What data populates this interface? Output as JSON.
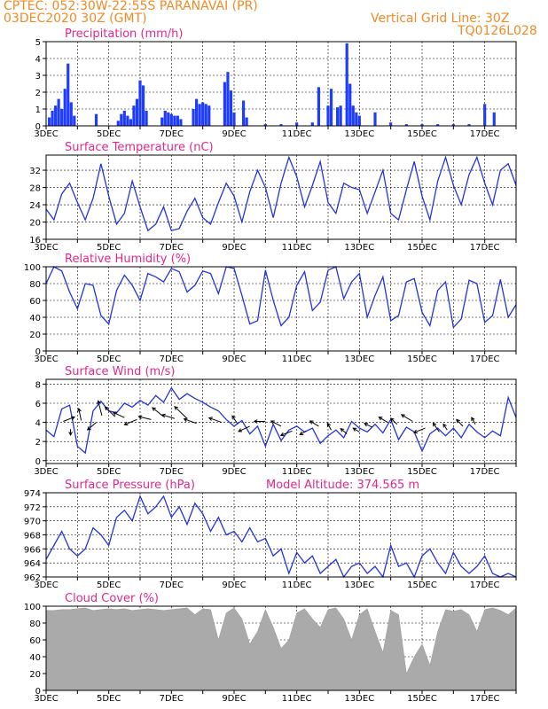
{
  "header": {
    "line1": "CPTEC:   052:30W-22:55S   PARANAVAI (PR)",
    "line2": "03DEC2020 30Z (GMT)",
    "grid_label": "Vertical Grid Line: 30Z",
    "code": "TQ0126L028"
  },
  "colors": {
    "header": "#f08a24",
    "title": "#e0288a",
    "series": "#2233dd",
    "bar": "#1e3cff",
    "cloud": "#aaaaaa",
    "axis": "#000000"
  },
  "chart_data": [
    {
      "type": "bar",
      "title": "Precipitation (mm/h)",
      "xlabels": [
        "3DEC",
        "5DEC",
        "7DEC",
        "9DEC",
        "11DEC",
        "13DEC",
        "15DEC",
        "17DEC"
      ],
      "yticks": [
        0,
        1,
        2,
        3,
        4,
        5
      ],
      "ylim": [
        0,
        5
      ],
      "days_span": [
        3,
        18
      ],
      "bars": [
        [
          3.1,
          0.5
        ],
        [
          3.2,
          0.9
        ],
        [
          3.3,
          1.2
        ],
        [
          3.4,
          1.6
        ],
        [
          3.5,
          1.0
        ],
        [
          3.6,
          2.2
        ],
        [
          3.7,
          3.7
        ],
        [
          3.8,
          1.4
        ],
        [
          3.9,
          0.6
        ],
        [
          4.6,
          0.7
        ],
        [
          5.3,
          0.3
        ],
        [
          5.4,
          0.7
        ],
        [
          5.5,
          0.9
        ],
        [
          5.6,
          0.6
        ],
        [
          5.7,
          0.4
        ],
        [
          5.8,
          1.2
        ],
        [
          5.9,
          1.6
        ],
        [
          6.0,
          2.7
        ],
        [
          6.1,
          2.4
        ],
        [
          6.2,
          0.9
        ],
        [
          6.7,
          0.5
        ],
        [
          6.8,
          0.9
        ],
        [
          6.9,
          0.8
        ],
        [
          7.0,
          0.7
        ],
        [
          7.1,
          0.6
        ],
        [
          7.2,
          0.6
        ],
        [
          7.3,
          0.4
        ],
        [
          7.7,
          1.0
        ],
        [
          7.8,
          1.6
        ],
        [
          7.9,
          1.3
        ],
        [
          8.0,
          1.4
        ],
        [
          8.1,
          1.3
        ],
        [
          8.2,
          1.2
        ],
        [
          8.7,
          2.6
        ],
        [
          8.8,
          3.2
        ],
        [
          8.9,
          2.1
        ],
        [
          9.0,
          0.8
        ],
        [
          9.3,
          1.5
        ],
        [
          9.4,
          0.5
        ],
        [
          10.0,
          0.1
        ],
        [
          10.5,
          0.1
        ],
        [
          11.0,
          0.2
        ],
        [
          11.5,
          0.2
        ],
        [
          11.7,
          2.3
        ],
        [
          12.0,
          1.2
        ],
        [
          12.1,
          2.2
        ],
        [
          12.3,
          1.1
        ],
        [
          12.4,
          1.2
        ],
        [
          12.6,
          4.9
        ],
        [
          12.7,
          2.5
        ],
        [
          12.8,
          1.2
        ],
        [
          12.9,
          0.8
        ],
        [
          13.0,
          0.6
        ],
        [
          13.5,
          0.8
        ],
        [
          14.0,
          0.2
        ],
        [
          14.5,
          0.1
        ],
        [
          15.0,
          0.1
        ],
        [
          15.5,
          0.1
        ],
        [
          16.0,
          0.1
        ],
        [
          16.5,
          0.1
        ],
        [
          17.0,
          1.3
        ],
        [
          17.3,
          0.8
        ]
      ]
    },
    {
      "type": "line",
      "title": "Surface Temperature (nC)",
      "xlabels": [
        "3DEC",
        "5DEC",
        "7DEC",
        "9DEC",
        "11DEC",
        "13DEC",
        "15DEC",
        "17DEC"
      ],
      "yticks": [
        16,
        20,
        24,
        28,
        32
      ],
      "ylim": [
        16,
        35.5
      ],
      "days_span": [
        3,
        18
      ],
      "x": [
        3.0,
        3.25,
        3.5,
        3.75,
        4.0,
        4.25,
        4.5,
        4.75,
        5.0,
        5.25,
        5.5,
        5.75,
        6.0,
        6.25,
        6.5,
        6.75,
        7.0,
        7.25,
        7.5,
        7.75,
        8.0,
        8.25,
        8.5,
        8.75,
        9.0,
        9.25,
        9.5,
        9.75,
        10.0,
        10.25,
        10.5,
        10.75,
        11.0,
        11.25,
        11.5,
        11.75,
        12.0,
        12.25,
        12.5,
        12.75,
        13.0,
        13.25,
        13.5,
        13.75,
        14.0,
        14.25,
        14.5,
        14.75,
        15.0,
        15.25,
        15.5,
        15.75,
        16.0,
        16.25,
        16.5,
        16.75,
        17.0,
        17.25,
        17.5,
        17.75,
        18.0
      ],
      "y": [
        23,
        20.5,
        26.5,
        29,
        24.5,
        20.5,
        25.5,
        33.5,
        26,
        19.5,
        22,
        29.5,
        23.5,
        18,
        19.5,
        23.5,
        18,
        18.5,
        22.5,
        25.5,
        21,
        19.5,
        24.5,
        29,
        26,
        20,
        27,
        32,
        28,
        21,
        29,
        35,
        30.5,
        23.5,
        28.5,
        34,
        24.5,
        22,
        29,
        28,
        27.5,
        22,
        27,
        32,
        22,
        20.5,
        27.5,
        34,
        26,
        20.5,
        29.5,
        35,
        28.5,
        24,
        31,
        35,
        29,
        24,
        32,
        33.5,
        28.5
      ]
    },
    {
      "type": "line",
      "title": "Relative Humidity (%)",
      "xlabels": [
        "3DEC",
        "5DEC",
        "7DEC",
        "9DEC",
        "11DEC",
        "13DEC",
        "15DEC",
        "17DEC"
      ],
      "yticks": [
        0,
        20,
        40,
        60,
        80,
        100
      ],
      "ylim": [
        0,
        100
      ],
      "days_span": [
        3,
        18
      ],
      "x": [
        3.0,
        3.25,
        3.5,
        3.75,
        4.0,
        4.25,
        4.5,
        4.75,
        5.0,
        5.25,
        5.5,
        5.75,
        6.0,
        6.25,
        6.5,
        6.75,
        7.0,
        7.25,
        7.5,
        7.75,
        8.0,
        8.25,
        8.5,
        8.75,
        9.0,
        9.25,
        9.5,
        9.75,
        10.0,
        10.25,
        10.5,
        10.75,
        11.0,
        11.25,
        11.5,
        11.75,
        12.0,
        12.25,
        12.5,
        12.75,
        13.0,
        13.25,
        13.5,
        13.75,
        14.0,
        14.25,
        14.5,
        14.75,
        15.0,
        15.25,
        15.5,
        15.75,
        16.0,
        16.25,
        16.5,
        16.75,
        17.0,
        17.25,
        17.5,
        17.75,
        18.0
      ],
      "y": [
        80,
        100,
        95,
        70,
        50,
        80,
        78,
        42,
        32,
        72,
        90,
        78,
        60,
        92,
        88,
        82,
        98,
        94,
        70,
        78,
        95,
        92,
        68,
        100,
        98,
        66,
        32,
        36,
        96,
        60,
        30,
        40,
        78,
        94,
        48,
        58,
        96,
        100,
        62,
        82,
        92,
        40,
        66,
        88,
        36,
        42,
        82,
        86,
        46,
        30,
        72,
        82,
        28,
        38,
        84,
        80,
        34,
        42,
        85,
        40,
        55
      ]
    },
    {
      "type": "line",
      "title": "Surface Wind (m/s)",
      "xlabels": [
        "3DEC",
        "5DEC",
        "7DEC",
        "9DEC",
        "11DEC",
        "13DEC",
        "15DEC",
        "17DEC"
      ],
      "yticks": [
        0,
        2,
        4,
        6,
        8
      ],
      "ylim": [
        -0.3,
        8.5
      ],
      "days_span": [
        3,
        18
      ],
      "x": [
        3.0,
        3.25,
        3.5,
        3.75,
        4.0,
        4.25,
        4.5,
        4.75,
        5.0,
        5.25,
        5.5,
        5.75,
        6.0,
        6.25,
        6.5,
        6.75,
        7.0,
        7.25,
        7.5,
        7.75,
        8.0,
        8.25,
        8.5,
        8.75,
        9.0,
        9.25,
        9.5,
        9.75,
        10.0,
        10.25,
        10.5,
        10.75,
        11.0,
        11.25,
        11.5,
        11.75,
        12.0,
        12.25,
        12.5,
        12.75,
        13.0,
        13.25,
        13.5,
        13.75,
        14.0,
        14.25,
        14.5,
        14.75,
        15.0,
        15.25,
        15.5,
        15.75,
        16.0,
        16.25,
        16.5,
        16.75,
        17.0,
        17.25,
        17.5,
        17.75,
        18.0
      ],
      "y": [
        3.2,
        2.5,
        5.4,
        5.8,
        1.5,
        0.8,
        5.2,
        6.2,
        5.2,
        5.0,
        6.0,
        5.6,
        6.3,
        5.8,
        6.8,
        6.1,
        7.6,
        6.4,
        7.0,
        6.5,
        6.1,
        5.6,
        5.2,
        4.3,
        3.6,
        4.2,
        2.8,
        3.6,
        1.5,
        3.8,
        2.1,
        3.2,
        3.6,
        3.0,
        3.4,
        1.8,
        2.6,
        3.2,
        2.4,
        4.1,
        3.4,
        3.0,
        3.8,
        2.9,
        4.3,
        2.2,
        3.5,
        3.0,
        1.0,
        2.8,
        3.4,
        2.6,
        3.4,
        2.4,
        3.8,
        3.0,
        2.4,
        3.1,
        2.6,
        6.6,
        4.5
      ],
      "arrows": [
        [
          3.55,
          4.1,
          0.9,
          0.6
        ],
        [
          3.78,
          3.3,
          0.0,
          -0.8
        ],
        [
          4.12,
          4.2,
          -0.2,
          1.6
        ],
        [
          4.6,
          4.0,
          -0.7,
          -1.0
        ],
        [
          4.78,
          4.7,
          -0.3,
          2.0
        ],
        [
          5.2,
          4.6,
          -0.8,
          1.3
        ],
        [
          5.5,
          4.5,
          -0.9,
          0.7
        ],
        [
          5.9,
          4.3,
          -1.0,
          -0.7
        ],
        [
          6.35,
          4.3,
          -1.0,
          0.4
        ],
        [
          6.75,
          4.6,
          -0.9,
          1.2
        ],
        [
          7.1,
          4.4,
          -1.0,
          0.5
        ],
        [
          7.5,
          4.4,
          -1.0,
          1.6
        ],
        [
          7.8,
          3.9,
          -1.0,
          0.6
        ],
        [
          8.6,
          4.0,
          -1.0,
          0.6
        ],
        [
          9.1,
          3.9,
          -0.4,
          1.0
        ],
        [
          9.5,
          3.6,
          -0.9,
          -0.7
        ],
        [
          10.0,
          4.1,
          -0.9,
          0.0
        ],
        [
          10.5,
          3.6,
          -0.8,
          0.7
        ],
        [
          10.85,
          3.1,
          -0.9,
          -0.6
        ],
        [
          11.3,
          3.1,
          -0.5,
          -0.5
        ],
        [
          11.7,
          3.6,
          -0.7,
          0.7
        ],
        [
          12.1,
          3.2,
          -0.3,
          0.9
        ],
        [
          12.6,
          2.8,
          -0.5,
          0.7
        ],
        [
          13.0,
          3.0,
          -0.5,
          0.5
        ],
        [
          13.4,
          3.5,
          -0.6,
          0.5
        ],
        [
          13.9,
          4.0,
          -0.7,
          0.7
        ],
        [
          14.2,
          3.8,
          -0.5,
          0.8
        ],
        [
          14.7,
          4.1,
          -0.9,
          0.9
        ],
        [
          15.1,
          3.4,
          -0.9,
          -0.6
        ],
        [
          15.55,
          3.0,
          -0.5,
          1.2
        ],
        [
          15.8,
          3.2,
          -0.3,
          0.8
        ],
        [
          16.3,
          3.6,
          -0.5,
          0.9
        ],
        [
          16.7,
          3.8,
          -0.3,
          0.9
        ]
      ]
    },
    {
      "type": "line",
      "title": "Surface Pressure (hPa)",
      "annotation": "Model Altitude: 374.565 m",
      "xlabels": [
        "3DEC",
        "5DEC",
        "7DEC",
        "9DEC",
        "11DEC",
        "13DEC",
        "15DEC",
        "17DEC"
      ],
      "yticks": [
        962,
        964,
        966,
        968,
        970,
        972,
        974
      ],
      "ylim": [
        962,
        974
      ],
      "days_span": [
        3,
        18
      ],
      "x": [
        3.0,
        3.25,
        3.5,
        3.75,
        4.0,
        4.25,
        4.5,
        4.75,
        5.0,
        5.25,
        5.5,
        5.75,
        6.0,
        6.25,
        6.5,
        6.75,
        7.0,
        7.25,
        7.5,
        7.75,
        8.0,
        8.25,
        8.5,
        8.75,
        9.0,
        9.25,
        9.5,
        9.75,
        10.0,
        10.25,
        10.5,
        10.75,
        11.0,
        11.25,
        11.5,
        11.75,
        12.0,
        12.25,
        12.5,
        12.75,
        13.0,
        13.25,
        13.5,
        13.75,
        14.0,
        14.25,
        14.5,
        14.75,
        15.0,
        15.25,
        15.5,
        15.75,
        16.0,
        16.25,
        16.5,
        16.75,
        17.0,
        17.25,
        17.5,
        17.75,
        18.0
      ],
      "y": [
        964.5,
        966.5,
        968.5,
        966,
        965,
        966,
        969,
        968,
        966.5,
        970.5,
        971.5,
        970,
        973.5,
        971,
        972,
        973.5,
        970.5,
        972,
        969.5,
        972.5,
        971,
        968.5,
        970.5,
        968,
        968.5,
        967,
        969,
        967,
        967.5,
        965,
        966,
        962.5,
        965.5,
        964,
        965,
        962.5,
        963.5,
        964.5,
        962,
        963.5,
        964,
        962.5,
        963.5,
        962,
        966.5,
        963.5,
        964,
        962,
        965,
        966,
        964,
        962.5,
        965.5,
        963.5,
        962.5,
        963.5,
        965,
        962.5,
        962,
        962.5,
        962
      ]
    },
    {
      "type": "area",
      "title": "Cloud Cover (%)",
      "xlabels": [
        "3DEC",
        "5DEC",
        "7DEC",
        "9DEC",
        "11DEC",
        "13DEC",
        "15DEC",
        "17DEC"
      ],
      "yticks": [
        0,
        20,
        40,
        60,
        80,
        100
      ],
      "ylim": [
        0,
        100
      ],
      "days_span": [
        3,
        18
      ],
      "x": [
        3.0,
        3.25,
        3.5,
        3.75,
        4.0,
        4.25,
        4.5,
        4.75,
        5.0,
        5.25,
        5.5,
        5.75,
        6.0,
        6.25,
        6.5,
        6.75,
        7.0,
        7.25,
        7.5,
        7.75,
        8.0,
        8.25,
        8.5,
        8.75,
        9.0,
        9.25,
        9.5,
        9.75,
        10.0,
        10.25,
        10.5,
        10.75,
        11.0,
        11.25,
        11.5,
        11.75,
        12.0,
        12.25,
        12.5,
        12.75,
        13.0,
        13.25,
        13.5,
        13.75,
        14.0,
        14.25,
        14.5,
        14.75,
        15.0,
        15.25,
        15.5,
        15.75,
        16.0,
        16.25,
        16.5,
        16.75,
        17.0,
        17.25,
        17.5,
        17.75,
        18.0
      ],
      "y": [
        95,
        95,
        96,
        96,
        97,
        98,
        95,
        96,
        97,
        96,
        97,
        95,
        96,
        97,
        96,
        95,
        96,
        97,
        98,
        90,
        97,
        96,
        60,
        92,
        98,
        85,
        55,
        70,
        96,
        75,
        50,
        60,
        92,
        97,
        85,
        75,
        96,
        98,
        85,
        60,
        90,
        97,
        70,
        45,
        95,
        90,
        20,
        40,
        55,
        30,
        70,
        96,
        94,
        96,
        90,
        70,
        96,
        98,
        95,
        90,
        98
      ]
    }
  ]
}
